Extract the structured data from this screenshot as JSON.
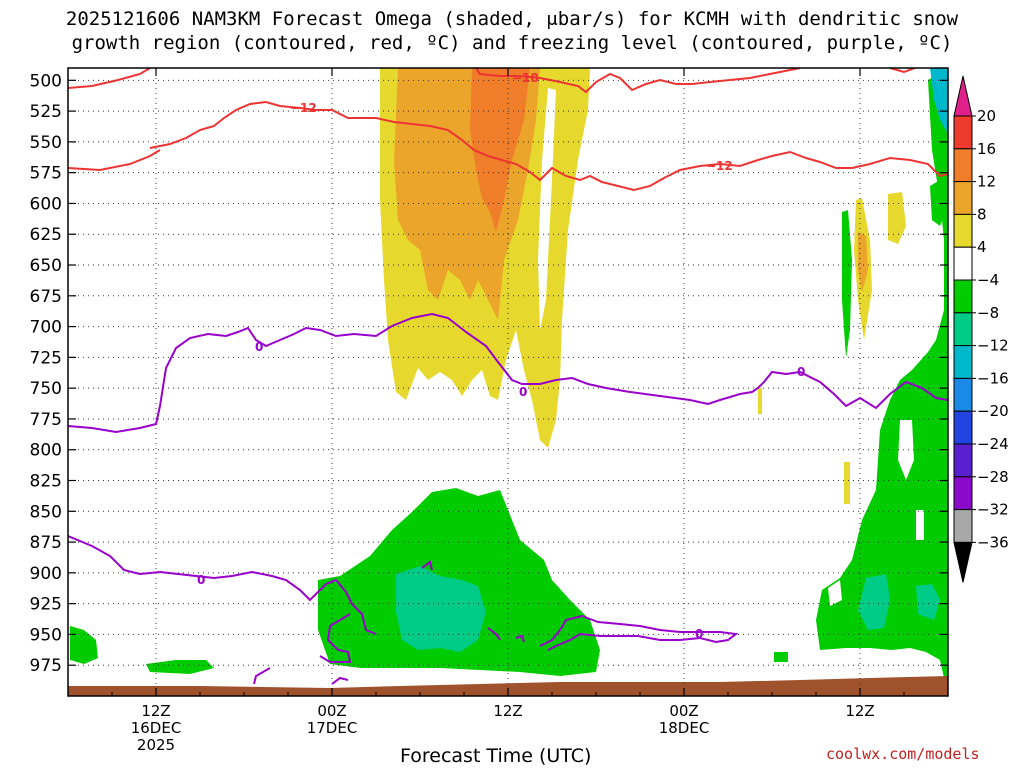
{
  "title_line1": "2025121606 NAM3KM Forecast Omega (shaded, μbar/s) for KCMH with dendritic snow",
  "title_line2": "growth region (contoured, red, ºC) and freezing level (contoured, purple, ºC)",
  "xlabel": "Forecast Time (UTC)",
  "credit": "coolwx.com/models",
  "chart_data": {
    "type": "heatmap",
    "x_ticks": [
      {
        "line1": "12Z",
        "line2": "16DEC",
        "line3": "2025",
        "hour": 6
      },
      {
        "line1": "00Z",
        "line2": "17DEC",
        "line3": "",
        "hour": 18
      },
      {
        "line1": "12Z",
        "line2": "",
        "line3": "",
        "hour": 30
      },
      {
        "line1": "00Z",
        "line2": "18DEC",
        "line3": "",
        "hour": 42
      },
      {
        "line1": "12Z",
        "line2": "",
        "line3": "",
        "hour": 54
      }
    ],
    "xlim_hours": [
      0,
      60
    ],
    "y_levels": [
      "500",
      "525",
      "550",
      "575",
      "600",
      "625",
      "650",
      "675",
      "700",
      "725",
      "750",
      "775",
      "800",
      "825",
      "850",
      "875",
      "900",
      "925",
      "950",
      "975"
    ],
    "ylim_mb": [
      490,
      1000
    ],
    "colorbar": {
      "labels": [
        "20",
        "16",
        "12",
        "8",
        "4",
        "−4",
        "−8",
        "−12",
        "−16",
        "−20",
        "−24",
        "−28",
        "−32",
        "−36"
      ],
      "colors": {
        "gt20": "#e0208a",
        "16_20": "#ef3b2c",
        "12_16": "#f07d2a",
        "8_12": "#eba52a",
        "4_8": "#e6d82c",
        "m4_4": "#ffffff",
        "m8_m4": "#00cc00",
        "m12_m8": "#00cc88",
        "m16_m12": "#00b8cc",
        "m20_m16": "#1a8ae6",
        "m24_m20": "#2244e0",
        "m28_m24": "#5a1fcf",
        "m32_m28": "#8a0acc",
        "m36_m32": "#a8a8a8",
        "lt36": "#000000"
      }
    },
    "contour_labels": {
      "dgz_top": "−18",
      "dgz_bottom": "−12",
      "dgz_bottom_right": "−12",
      "freezing": "0"
    },
    "colors": {
      "dgz": "#ee3333",
      "freezing": "#9900cc",
      "ground": "#a0522d"
    }
  }
}
